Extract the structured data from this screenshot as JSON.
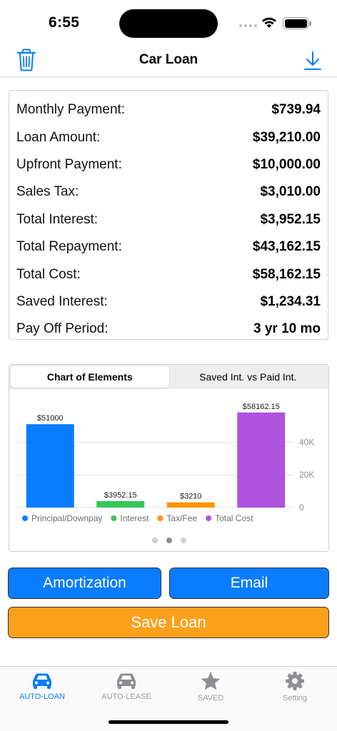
{
  "status": {
    "time": "6:55"
  },
  "nav": {
    "title": "Car Loan"
  },
  "summary": [
    {
      "label": "Monthly Payment:",
      "value": "$739.94"
    },
    {
      "label": "Loan Amount:",
      "value": "$39,210.00"
    },
    {
      "label": "Upfront Payment:",
      "value": "$10,000.00"
    },
    {
      "label": "Sales Tax:",
      "value": "$3,010.00"
    },
    {
      "label": "Total Interest:",
      "value": "$3,952.15"
    },
    {
      "label": "Total Repayment:",
      "value": "$43,162.15"
    },
    {
      "label": "Total Cost:",
      "value": "$58,162.15"
    },
    {
      "label": "Saved Interest:",
      "value": "$1,234.31"
    },
    {
      "label": "Pay Off Period:",
      "value": "3 yr 10 mo"
    }
  ],
  "chart_tabs": [
    "Chart of Elements",
    "Saved Int. vs Paid Int."
  ],
  "chart_data": {
    "type": "bar",
    "categories": [
      "Principal/Downpay",
      "Interest",
      "Tax/Fee",
      "Total Cost"
    ],
    "values": [
      51000,
      3952.15,
      3210,
      58162.15
    ],
    "data_labels": [
      "$51000",
      "$3952.15",
      "$3210",
      "$58162.15"
    ],
    "colors": [
      "#0a7cff",
      "#34c759",
      "#ff9500",
      "#af52de"
    ],
    "ylim": [
      0,
      62000
    ],
    "yticks": [
      0,
      20000,
      40000
    ],
    "ytick_labels": [
      "0",
      "20K",
      "40K"
    ],
    "grid": true,
    "legend_position": "bottom"
  },
  "buttons": {
    "amortization": "Amortization",
    "email": "Email",
    "save": "Save Loan"
  },
  "tabs": [
    {
      "label": "AUTO-LOAN",
      "icon": "car-icon",
      "active": true
    },
    {
      "label": "AUTO-LEASE",
      "icon": "car-icon",
      "active": false
    },
    {
      "label": "SAVED",
      "icon": "star-icon",
      "active": false
    },
    {
      "label": "Setting",
      "icon": "gear-icon",
      "active": false
    }
  ],
  "colors": {
    "accent": "#0a7cff",
    "save": "#fca11c"
  }
}
